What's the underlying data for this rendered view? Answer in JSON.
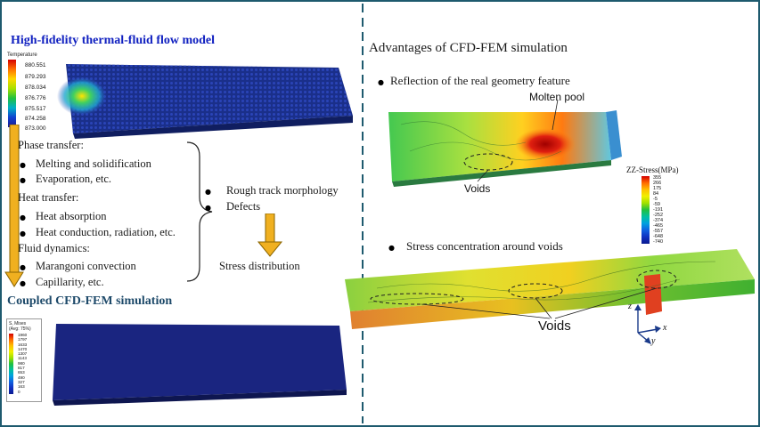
{
  "colors": {
    "frame": "#1e5a6e",
    "divider": "#1e5a6e",
    "title_blue": "#1020c0",
    "title_teal": "#1e4a6a",
    "arrow_fill": "#f0b020",
    "arrow_stroke": "#8a6400",
    "mesh_blue": "#1a2f8a"
  },
  "top_title": "High-fidelity thermal-fluid flow model",
  "temp_legend": {
    "title": "Temperature",
    "values": [
      "880.551",
      "879.293",
      "878.034",
      "876.776",
      "875.517",
      "874.258",
      "873.000"
    ]
  },
  "sections": [
    {
      "heading": "Phase transfer:",
      "items": [
        "Melting and solidification",
        "Evaporation, etc."
      ]
    },
    {
      "heading": "Heat transfer:",
      "items": [
        "Heat absorption",
        "Heat conduction, radiation, etc."
      ]
    },
    {
      "heading": "Fluid dynamics:",
      "items": [
        "Marangoni convection",
        "Capillarity, etc."
      ]
    }
  ],
  "mid_bullets": [
    "Rough track morphology",
    "Defects"
  ],
  "stress_distribution": "Stress distribution",
  "coupled_title": "Coupled CFD-FEM simulation",
  "mises_legend": {
    "title": "S, Mises",
    "subtitle": "(Avg: 75%)",
    "values": [
      "1960",
      "1797",
      "1633",
      "1470",
      "1307",
      "1143",
      "980",
      "817",
      "653",
      "490",
      "327",
      "163",
      "0"
    ]
  },
  "right": {
    "heading": "Advantages of CFD-FEM simulation",
    "bullet1": "Reflection of the real geometry feature",
    "molten_pool": "Molten pool",
    "voids_top": "Voids",
    "zz_legend": {
      "title": "ZZ-Stress(MPa)",
      "values": [
        "355",
        "266",
        "175",
        "84",
        "-5",
        "-59",
        "-191",
        "-252",
        "-374",
        "-465",
        "-557",
        "-648",
        "-740"
      ]
    },
    "bullet2": "Stress concentration around voids",
    "voids_bottom": "Voids",
    "axes": {
      "z": "z",
      "x": "x",
      "y": "y"
    }
  }
}
